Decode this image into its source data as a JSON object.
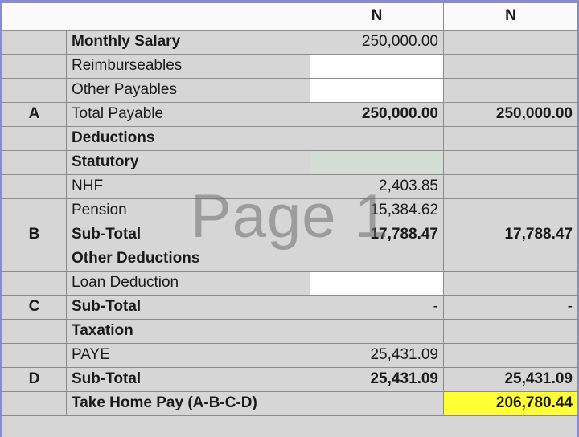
{
  "header": {
    "col3": "N",
    "col4": "N"
  },
  "watermark": "Page 1",
  "highlight_color": "#ffff33",
  "rows": [
    {
      "code": "",
      "label": "Monthly Salary",
      "v1": "250,000.00",
      "v2": "",
      "label_bold": true,
      "num_bold": false,
      "v1_bg": "",
      "v2_bg": ""
    },
    {
      "code": "",
      "label": "Reimburseables",
      "v1": "",
      "v2": "",
      "label_bold": false,
      "num_bold": false,
      "v1_bg": "white",
      "v2_bg": ""
    },
    {
      "code": "",
      "label": "Other Payables",
      "v1": "",
      "v2": "",
      "label_bold": false,
      "num_bold": false,
      "v1_bg": "white",
      "v2_bg": ""
    },
    {
      "code": "A",
      "label": "Total Payable",
      "v1": "250,000.00",
      "v2": "250,000.00",
      "label_bold": false,
      "num_bold": true,
      "v1_bg": "",
      "v2_bg": ""
    },
    {
      "code": "",
      "label": "Deductions",
      "v1": "",
      "v2": "",
      "label_bold": true,
      "num_bold": false,
      "v1_bg": "",
      "v2_bg": ""
    },
    {
      "code": "",
      "label": "Statutory",
      "v1": "",
      "v2": "",
      "label_bold": true,
      "num_bold": false,
      "v1_bg": "green",
      "v2_bg": ""
    },
    {
      "code": "",
      "label": "NHF",
      "v1": "2,403.85",
      "v2": "",
      "label_bold": false,
      "num_bold": false,
      "v1_bg": "",
      "v2_bg": ""
    },
    {
      "code": "",
      "label": "Pension",
      "v1": "15,384.62",
      "v2": "",
      "label_bold": false,
      "num_bold": false,
      "v1_bg": "",
      "v2_bg": ""
    },
    {
      "code": "B",
      "label": "Sub-Total",
      "v1": "17,788.47",
      "v2": "17,788.47",
      "label_bold": true,
      "num_bold": true,
      "v1_bg": "",
      "v2_bg": ""
    },
    {
      "code": "",
      "label": "Other Deductions",
      "v1": "",
      "v2": "",
      "label_bold": true,
      "num_bold": false,
      "v1_bg": "",
      "v2_bg": ""
    },
    {
      "code": "",
      "label": "Loan Deduction",
      "v1": "",
      "v2": "",
      "label_bold": false,
      "num_bold": false,
      "v1_bg": "white",
      "v2_bg": ""
    },
    {
      "code": "C",
      "label": "Sub-Total",
      "v1": "-",
      "v2": "-",
      "label_bold": true,
      "num_bold": false,
      "v1_bg": "",
      "v2_bg": ""
    },
    {
      "code": "",
      "label": "Taxation",
      "v1": "",
      "v2": "",
      "label_bold": true,
      "num_bold": false,
      "v1_bg": "",
      "v2_bg": ""
    },
    {
      "code": "",
      "label": "PAYE",
      "v1": "25,431.09",
      "v2": "",
      "label_bold": false,
      "num_bold": false,
      "v1_bg": "",
      "v2_bg": ""
    },
    {
      "code": "D",
      "label": "Sub-Total",
      "v1": "25,431.09",
      "v2": "25,431.09",
      "label_bold": true,
      "num_bold": true,
      "v1_bg": "",
      "v2_bg": ""
    },
    {
      "code": "",
      "label": "Take Home Pay (A-B-C-D)",
      "v1": "",
      "v2": "206,780.44",
      "label_bold": true,
      "num_bold": true,
      "v1_bg": "",
      "v2_bg": "yellow"
    }
  ]
}
